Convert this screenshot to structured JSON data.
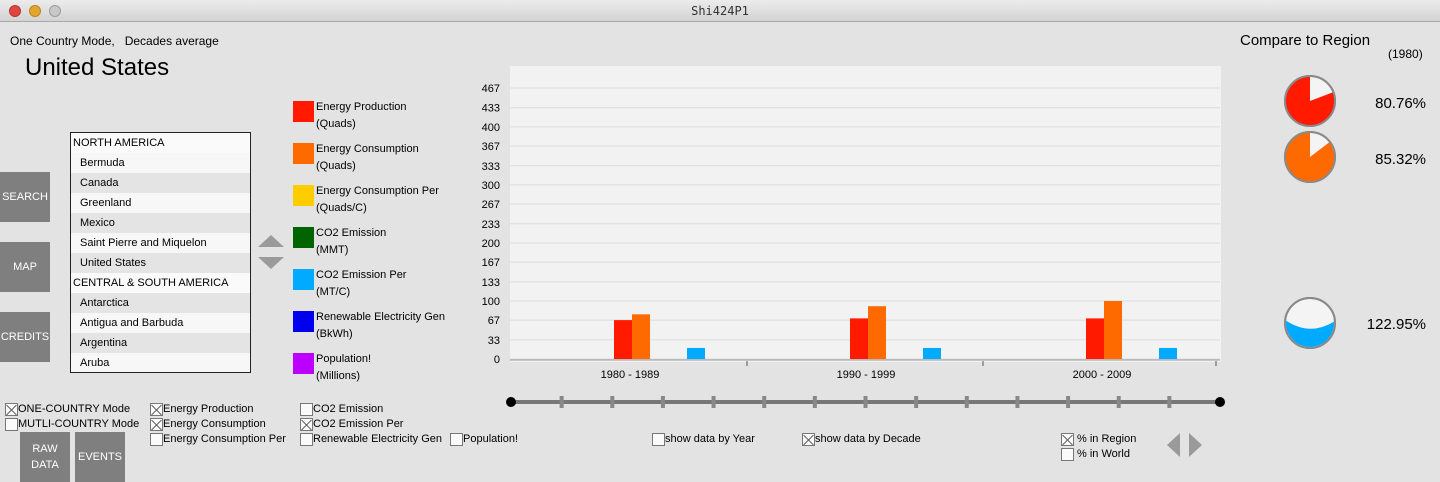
{
  "window": {
    "title": "Shi424P1"
  },
  "header": {
    "mode_line": "One Country Mode,   Decades average",
    "country": "United States"
  },
  "side_buttons": {
    "search": "SEARCH",
    "map": "MAP",
    "credits": "CREDITS"
  },
  "country_list": [
    {
      "label": "NORTH AMERICA",
      "kind": "region"
    },
    {
      "label": "Bermuda",
      "kind": "plain"
    },
    {
      "label": "Canada",
      "kind": "alt"
    },
    {
      "label": "Greenland",
      "kind": "plain"
    },
    {
      "label": "Mexico",
      "kind": "alt"
    },
    {
      "label": "Saint Pierre and Miquelon",
      "kind": "plain"
    },
    {
      "label": "United States",
      "kind": "alt"
    },
    {
      "label": "CENTRAL & SOUTH AMERICA",
      "kind": "region"
    },
    {
      "label": "Antarctica",
      "kind": "alt"
    },
    {
      "label": "Antigua and Barbuda",
      "kind": "plain"
    },
    {
      "label": "Argentina",
      "kind": "alt"
    },
    {
      "label": "Aruba",
      "kind": "plain"
    }
  ],
  "legend": [
    {
      "line1": "Energy Production",
      "line2": "(Quads)",
      "color": "#ff1a00"
    },
    {
      "line1": "Energy Consumption",
      "line2": "(Quads)",
      "color": "#ff6a00"
    },
    {
      "line1": "Energy Consumption Per",
      "line2": "(Quads/C)",
      "color": "#ffcc00"
    },
    {
      "line1": "CO2 Emission",
      "line2": "(MMT)",
      "color": "#006400"
    },
    {
      "line1": "CO2 Emission Per",
      "line2": "(MT/C)",
      "color": "#00aaff"
    },
    {
      "line1": "Renewable Electricity Gen",
      "line2": "(BkWh)",
      "color": "#0000ee"
    },
    {
      "line1": "Population!",
      "line2": "(Millions)",
      "color": "#bb00ff"
    }
  ],
  "chart_data": {
    "type": "bar",
    "categories": [
      "1980 - 1989",
      "1990 - 1999",
      "2000 - 2009"
    ],
    "yticks": [
      0,
      33,
      67,
      100,
      133,
      167,
      200,
      233,
      267,
      300,
      333,
      367,
      400,
      433,
      467
    ],
    "ylim": [
      0,
      467
    ],
    "grid": true,
    "series": [
      {
        "name": "Energy Production",
        "color": "#ff1a00",
        "values": [
          67,
          70,
          70
        ]
      },
      {
        "name": "Energy Consumption",
        "color": "#ff6a00",
        "values": [
          77,
          91,
          100
        ]
      },
      {
        "name": "CO2 Emission Per",
        "color": "#00aaff",
        "values": [
          19,
          19,
          19
        ]
      }
    ]
  },
  "slider": {
    "stops": 15
  },
  "checkboxes": {
    "one_country": {
      "label": "ONE-COUNTRY Mode",
      "checked": true
    },
    "multi_country": {
      "label": "MUTLI-COUNTRY Mode",
      "checked": false
    },
    "energy_production": {
      "label": "Energy Production",
      "checked": true
    },
    "energy_consumption": {
      "label": "Energy Consumption",
      "checked": true
    },
    "energy_consumption_per": {
      "label": "Energy Consumption Per",
      "checked": false
    },
    "co2_emission": {
      "label": "CO2 Emission",
      "checked": false
    },
    "co2_emission_per": {
      "label": "CO2 Emission Per",
      "checked": true
    },
    "renewable": {
      "label": "Renewable Electricity Gen",
      "checked": false
    },
    "population": {
      "label": "Population!",
      "checked": false
    },
    "by_year": {
      "label": "show data by Year",
      "checked": false
    },
    "by_decade": {
      "label": "show data by Decade",
      "checked": true
    },
    "pct_region": {
      "label": "% in Region",
      "checked": true
    },
    "pct_world": {
      "label": "% in World",
      "checked": false
    }
  },
  "buttons": {
    "raw_data": "RAW\nDATA",
    "events": "EVENTS"
  },
  "compare": {
    "title": "Compare to Region",
    "year": "(1980)",
    "items": [
      {
        "value": "80.76%",
        "fraction": 0.8076,
        "color": "#ff1a00",
        "style": "pie"
      },
      {
        "value": "85.32%",
        "fraction": 0.8532,
        "color": "#ff6a00",
        "style": "pie"
      },
      {
        "value": "122.95%",
        "fraction": 1.2295,
        "color": "#00aaff",
        "style": "fill"
      }
    ]
  }
}
